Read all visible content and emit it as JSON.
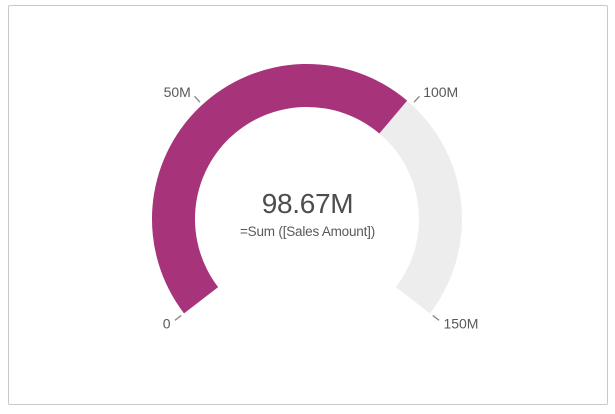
{
  "chart_data": {
    "type": "gauge",
    "title": "",
    "value": 98.67,
    "value_display": "98.67M",
    "label": "=Sum ([Sales Amount])",
    "min": 0,
    "max": 150,
    "units": "millions",
    "ticks": [
      {
        "value": 0,
        "label": "0"
      },
      {
        "value": 50,
        "label": "50M"
      },
      {
        "value": 100,
        "label": "100M"
      },
      {
        "value": 150,
        "label": "150M"
      }
    ],
    "layout": {
      "start_angle_deg": 217.5,
      "end_angle_deg": -37.5,
      "legend": "none",
      "grid": "off"
    },
    "colors": {
      "fill": "#A7337B",
      "track": "#EDEDED",
      "tick_line": "#8E8E8E",
      "tick_label": "#595959",
      "value_text": "#4D4D4D",
      "label_text": "#595959",
      "canvas_border": "#C9C9C9"
    }
  }
}
